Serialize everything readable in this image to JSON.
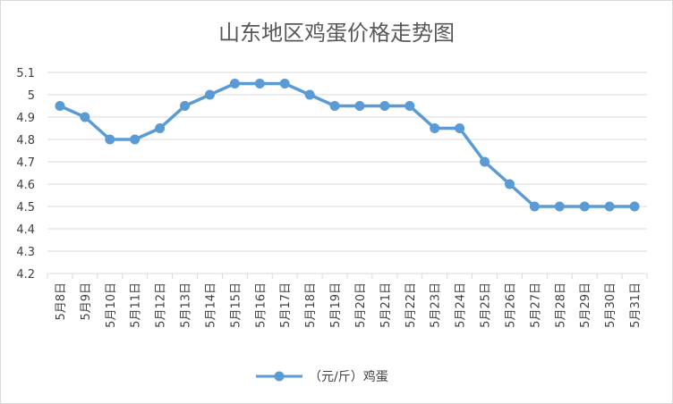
{
  "chart_data": {
    "type": "line",
    "title": "山东地区鸡蛋价格走势图",
    "xlabel": "",
    "ylabel": "",
    "categories": [
      "5月8日",
      "5月9日",
      "5月10日",
      "5月11日",
      "5月12日",
      "5月13日",
      "5月14日",
      "5月15日",
      "5月16日",
      "5月17日",
      "5月18日",
      "5月19日",
      "5月20日",
      "5月21日",
      "5月22日",
      "5月23日",
      "5月24日",
      "5月25日",
      "5月26日",
      "5月27日",
      "5月28日",
      "5月29日",
      "5月30日",
      "5月31日"
    ],
    "series": [
      {
        "name": "（元/斤）鸡蛋",
        "color": "#5b9bd5",
        "values": [
          4.95,
          4.9,
          4.8,
          4.8,
          4.85,
          4.95,
          5.0,
          5.05,
          5.05,
          5.05,
          5.0,
          4.95,
          4.95,
          4.95,
          4.95,
          4.85,
          4.85,
          4.7,
          4.6,
          4.5,
          4.5,
          4.5,
          4.5,
          4.5
        ]
      }
    ],
    "ylim": [
      4.2,
      5.1
    ],
    "yticks": [
      "4.2",
      "4.3",
      "4.4",
      "4.5",
      "4.6",
      "4.7",
      "4.8",
      "4.9",
      "5",
      "5.1"
    ],
    "grid": true,
    "legend": "bottom"
  },
  "colors": {
    "line": "#5b9bd5",
    "grid": "#d9d9d9",
    "text": "#404040",
    "title": "#595959"
  }
}
